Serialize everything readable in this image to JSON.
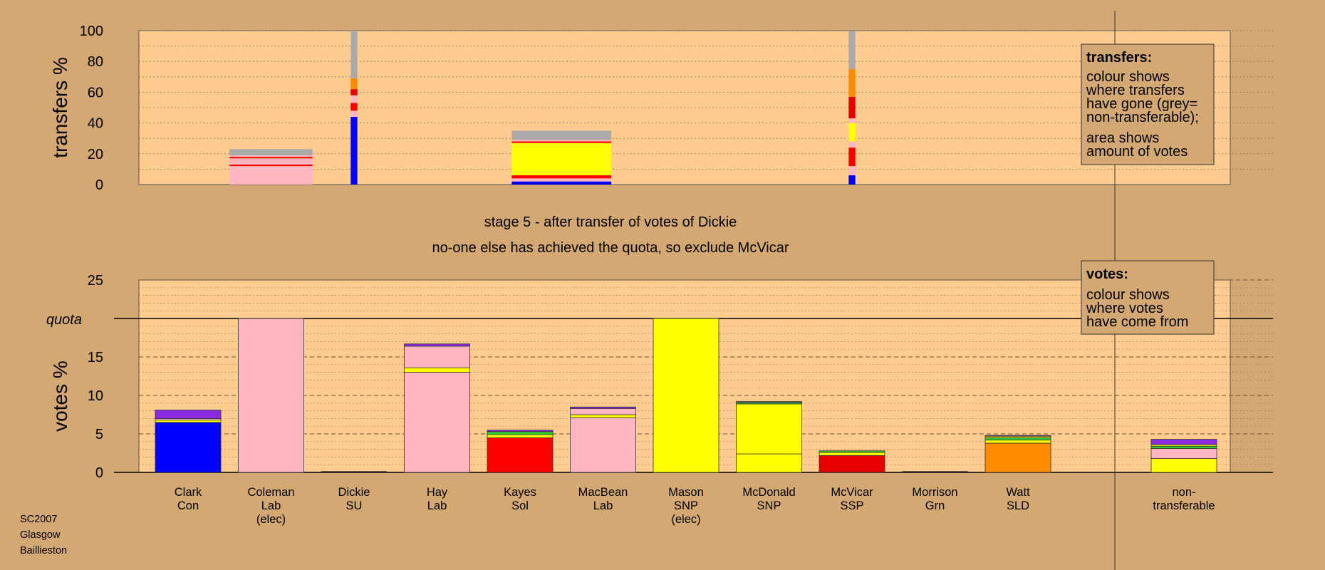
{
  "caption": {
    "line1": "stage 5 - after transfer of votes of Dickie",
    "line2": "no-one else has achieved the quota, so exclude McVicar"
  },
  "footer": [
    "SC2007",
    "Glasgow",
    "Baillieston"
  ],
  "colors": {
    "background": "#d4a873",
    "plot": "#ffcc8f",
    "Con": "#0000ff",
    "Lab": "#ffb6c1",
    "SNP": "#ffff00",
    "Sol": "#ff0000",
    "SSP": "#e60000",
    "SLD": "#ff8c00",
    "Grn": "#33cc33",
    "SU": "#8a2be2",
    "nontransferable": "#aaaaaa"
  },
  "candidates": [
    {
      "name": "Clark",
      "party": "Con",
      "note": ""
    },
    {
      "name": "Coleman",
      "party": "Lab",
      "note": "(elec)"
    },
    {
      "name": "Dickie",
      "party": "SU",
      "note": ""
    },
    {
      "name": "Hay",
      "party": "Lab",
      "note": ""
    },
    {
      "name": "Kayes",
      "party": "Sol",
      "note": ""
    },
    {
      "name": "MacBean",
      "party": "Lab",
      "note": ""
    },
    {
      "name": "Mason",
      "party": "SNP",
      "note": "(elec)"
    },
    {
      "name": "McDonald",
      "party": "SNP",
      "note": ""
    },
    {
      "name": "McVicar",
      "party": "SSP",
      "note": ""
    },
    {
      "name": "Morrison",
      "party": "Grn",
      "note": ""
    },
    {
      "name": "Watt",
      "party": "SLD",
      "note": ""
    },
    {
      "name": "non-",
      "party": "transferable",
      "note": ""
    }
  ],
  "legend_transfers": {
    "title": "transfers:",
    "lines1": [
      "colour shows",
      "where transfers",
      "have gone (grey=",
      "non-transferable);"
    ],
    "lines2": [
      "area shows",
      "amount of votes"
    ]
  },
  "legend_votes": {
    "title": "votes:",
    "lines": [
      "colour shows",
      "where votes",
      "have come from"
    ]
  },
  "chart_data": [
    {
      "type": "bar",
      "title": "",
      "ylabel": "transfers %",
      "ylim": [
        0,
        100
      ],
      "yticks": [
        0,
        20,
        40,
        60,
        80,
        100
      ],
      "bars": [
        {
          "position": 1,
          "width": 1,
          "segments": [
            {
              "party": "Lab",
              "value": 12
            },
            {
              "party": "Sol",
              "value": 1
            },
            {
              "party": "Lab",
              "value": 4
            },
            {
              "party": "Sol",
              "value": 1
            },
            {
              "party": "Lab",
              "value": 1
            },
            {
              "party": "nontransferable",
              "value": 4
            }
          ]
        },
        {
          "position": 2,
          "width": 0.08,
          "segments": [
            {
              "party": "Con",
              "value": 44
            },
            {
              "party": "Lab",
              "value": 4
            },
            {
              "party": "Sol",
              "value": 5
            },
            {
              "party": "Lab",
              "value": 5
            },
            {
              "party": "SSP",
              "value": 4
            },
            {
              "party": "SLD",
              "value": 7
            },
            {
              "party": "nontransferable",
              "value": 31
            }
          ]
        },
        {
          "position": 4.5,
          "width": 1.2,
          "segments": [
            {
              "party": "Con",
              "value": 2
            },
            {
              "party": "Lab",
              "value": 2
            },
            {
              "party": "Sol",
              "value": 2
            },
            {
              "party": "SNP",
              "value": 21
            },
            {
              "party": "Sol",
              "value": 1
            },
            {
              "party": "Lab",
              "value": 1
            },
            {
              "party": "nontransferable",
              "value": 6
            }
          ]
        },
        {
          "position": 8,
          "width": 0.08,
          "segments": [
            {
              "party": "Con",
              "value": 6
            },
            {
              "party": "Lab",
              "value": 6
            },
            {
              "party": "Sol",
              "value": 12
            },
            {
              "party": "Lab",
              "value": 4
            },
            {
              "party": "SNP",
              "value": 12
            },
            {
              "party": "Lab",
              "value": 3
            },
            {
              "party": "SSP",
              "value": 14
            },
            {
              "party": "SLD",
              "value": 18
            },
            {
              "party": "nontransferable",
              "value": 25
            }
          ]
        }
      ]
    },
    {
      "type": "bar",
      "title": "",
      "ylabel": "votes %",
      "ylim": [
        0,
        25
      ],
      "yticks": [
        0,
        5,
        10,
        15,
        20,
        25
      ],
      "quota": {
        "label": "quota",
        "value": 20
      },
      "categories": [
        "Clark Con",
        "Coleman Lab (elec)",
        "Dickie SU",
        "Hay Lab",
        "Kayes Sol",
        "MacBean Lab",
        "Mason SNP (elec)",
        "McDonald SNP",
        "McVicar SSP",
        "Morrison Grn",
        "Watt SLD",
        "non-transferable"
      ],
      "stacks": [
        [
          {
            "party": "Con",
            "value": 6.5
          },
          {
            "party": "SNP",
            "value": 0.3
          },
          {
            "party": "Lab",
            "value": 0.2
          },
          {
            "party": "SU",
            "value": 1.1
          }
        ],
        [
          {
            "party": "Lab",
            "value": 20
          }
        ],
        [],
        [
          {
            "party": "Lab",
            "value": 13
          },
          {
            "party": "SNP",
            "value": 0.6
          },
          {
            "party": "Lab",
            "value": 2.8
          },
          {
            "party": "SU",
            "value": 0.3
          }
        ],
        [
          {
            "party": "Sol",
            "value": 4.5
          },
          {
            "party": "SNP",
            "value": 0.4
          },
          {
            "party": "Grn",
            "value": 0.4
          },
          {
            "party": "SU",
            "value": 0.2
          }
        ],
        [
          {
            "party": "Lab",
            "value": 7.1
          },
          {
            "party": "SNP",
            "value": 0.4
          },
          {
            "party": "Lab",
            "value": 0.8
          },
          {
            "party": "SU",
            "value": 0.2
          }
        ],
        [
          {
            "party": "SNP",
            "value": 20
          }
        ],
        [
          {
            "party": "SNP",
            "value": 2.4
          },
          {
            "party": "SNP",
            "value": 6.5
          },
          {
            "party": "Grn",
            "value": 0.2
          },
          {
            "party": "SU",
            "value": 0.1
          }
        ],
        [
          {
            "party": "SSP",
            "value": 2.2
          },
          {
            "party": "SNP",
            "value": 0.4
          },
          {
            "party": "Grn",
            "value": 0.2
          }
        ],
        [],
        [
          {
            "party": "SLD",
            "value": 3.8
          },
          {
            "party": "SNP",
            "value": 0.4
          },
          {
            "party": "Grn",
            "value": 0.3
          },
          {
            "party": "SNP",
            "value": 0.2
          },
          {
            "party": "SU",
            "value": 0.1
          }
        ],
        [
          {
            "party": "SNP",
            "value": 1.8
          },
          {
            "party": "Lab",
            "value": 1.3
          },
          {
            "party": "Grn",
            "value": 0.3
          },
          {
            "party": "SNP",
            "value": 0.2
          },
          {
            "party": "SU",
            "value": 0.7
          }
        ]
      ]
    }
  ]
}
